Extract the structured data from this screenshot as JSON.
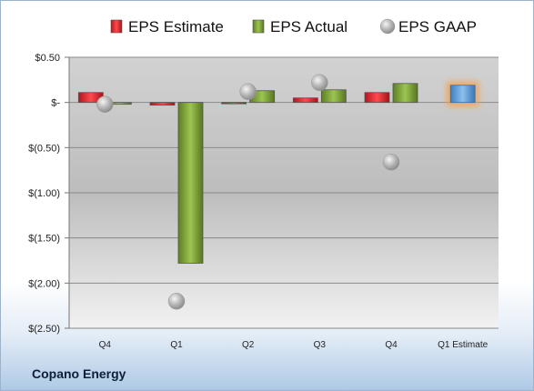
{
  "company": "Copano Energy",
  "chart_data": {
    "type": "bar",
    "categories": [
      "Q4",
      "Q1",
      "Q2",
      "Q3",
      "Q4",
      "Q1 Estimate"
    ],
    "y_ticks": [
      {
        "value": 0.5,
        "label": "$0.50"
      },
      {
        "value": 0,
        "label": "$-"
      },
      {
        "value": -0.5,
        "label": "$(0.50)"
      },
      {
        "value": -1.0,
        "label": "$(1.00)"
      },
      {
        "value": -1.5,
        "label": "$(1.50)"
      },
      {
        "value": -2.0,
        "label": "$(2.00)"
      },
      {
        "value": -2.5,
        "label": "$(2.50)"
      }
    ],
    "ylim": [
      -2.5,
      0.5
    ],
    "grid": true,
    "legend_position": "top",
    "series": [
      {
        "name": "EPS Estimate",
        "kind": "bar",
        "color": "#e0262e",
        "values": [
          0.11,
          -0.03,
          -0.01,
          0.05,
          0.11,
          null
        ]
      },
      {
        "name": "EPS Actual",
        "kind": "bar",
        "color": "#7fa33a",
        "values": [
          -0.02,
          -1.78,
          0.13,
          0.14,
          0.21,
          null
        ]
      },
      {
        "name": "EPS GAAP",
        "kind": "marker",
        "color": "#b8b8b8",
        "values": [
          -0.02,
          -2.2,
          0.12,
          0.22,
          -0.66,
          null
        ]
      }
    ],
    "forecast": {
      "category": "Q1 Estimate",
      "value": 0.19,
      "color": "#5b9bd5",
      "glow": "#f5a04a"
    }
  }
}
